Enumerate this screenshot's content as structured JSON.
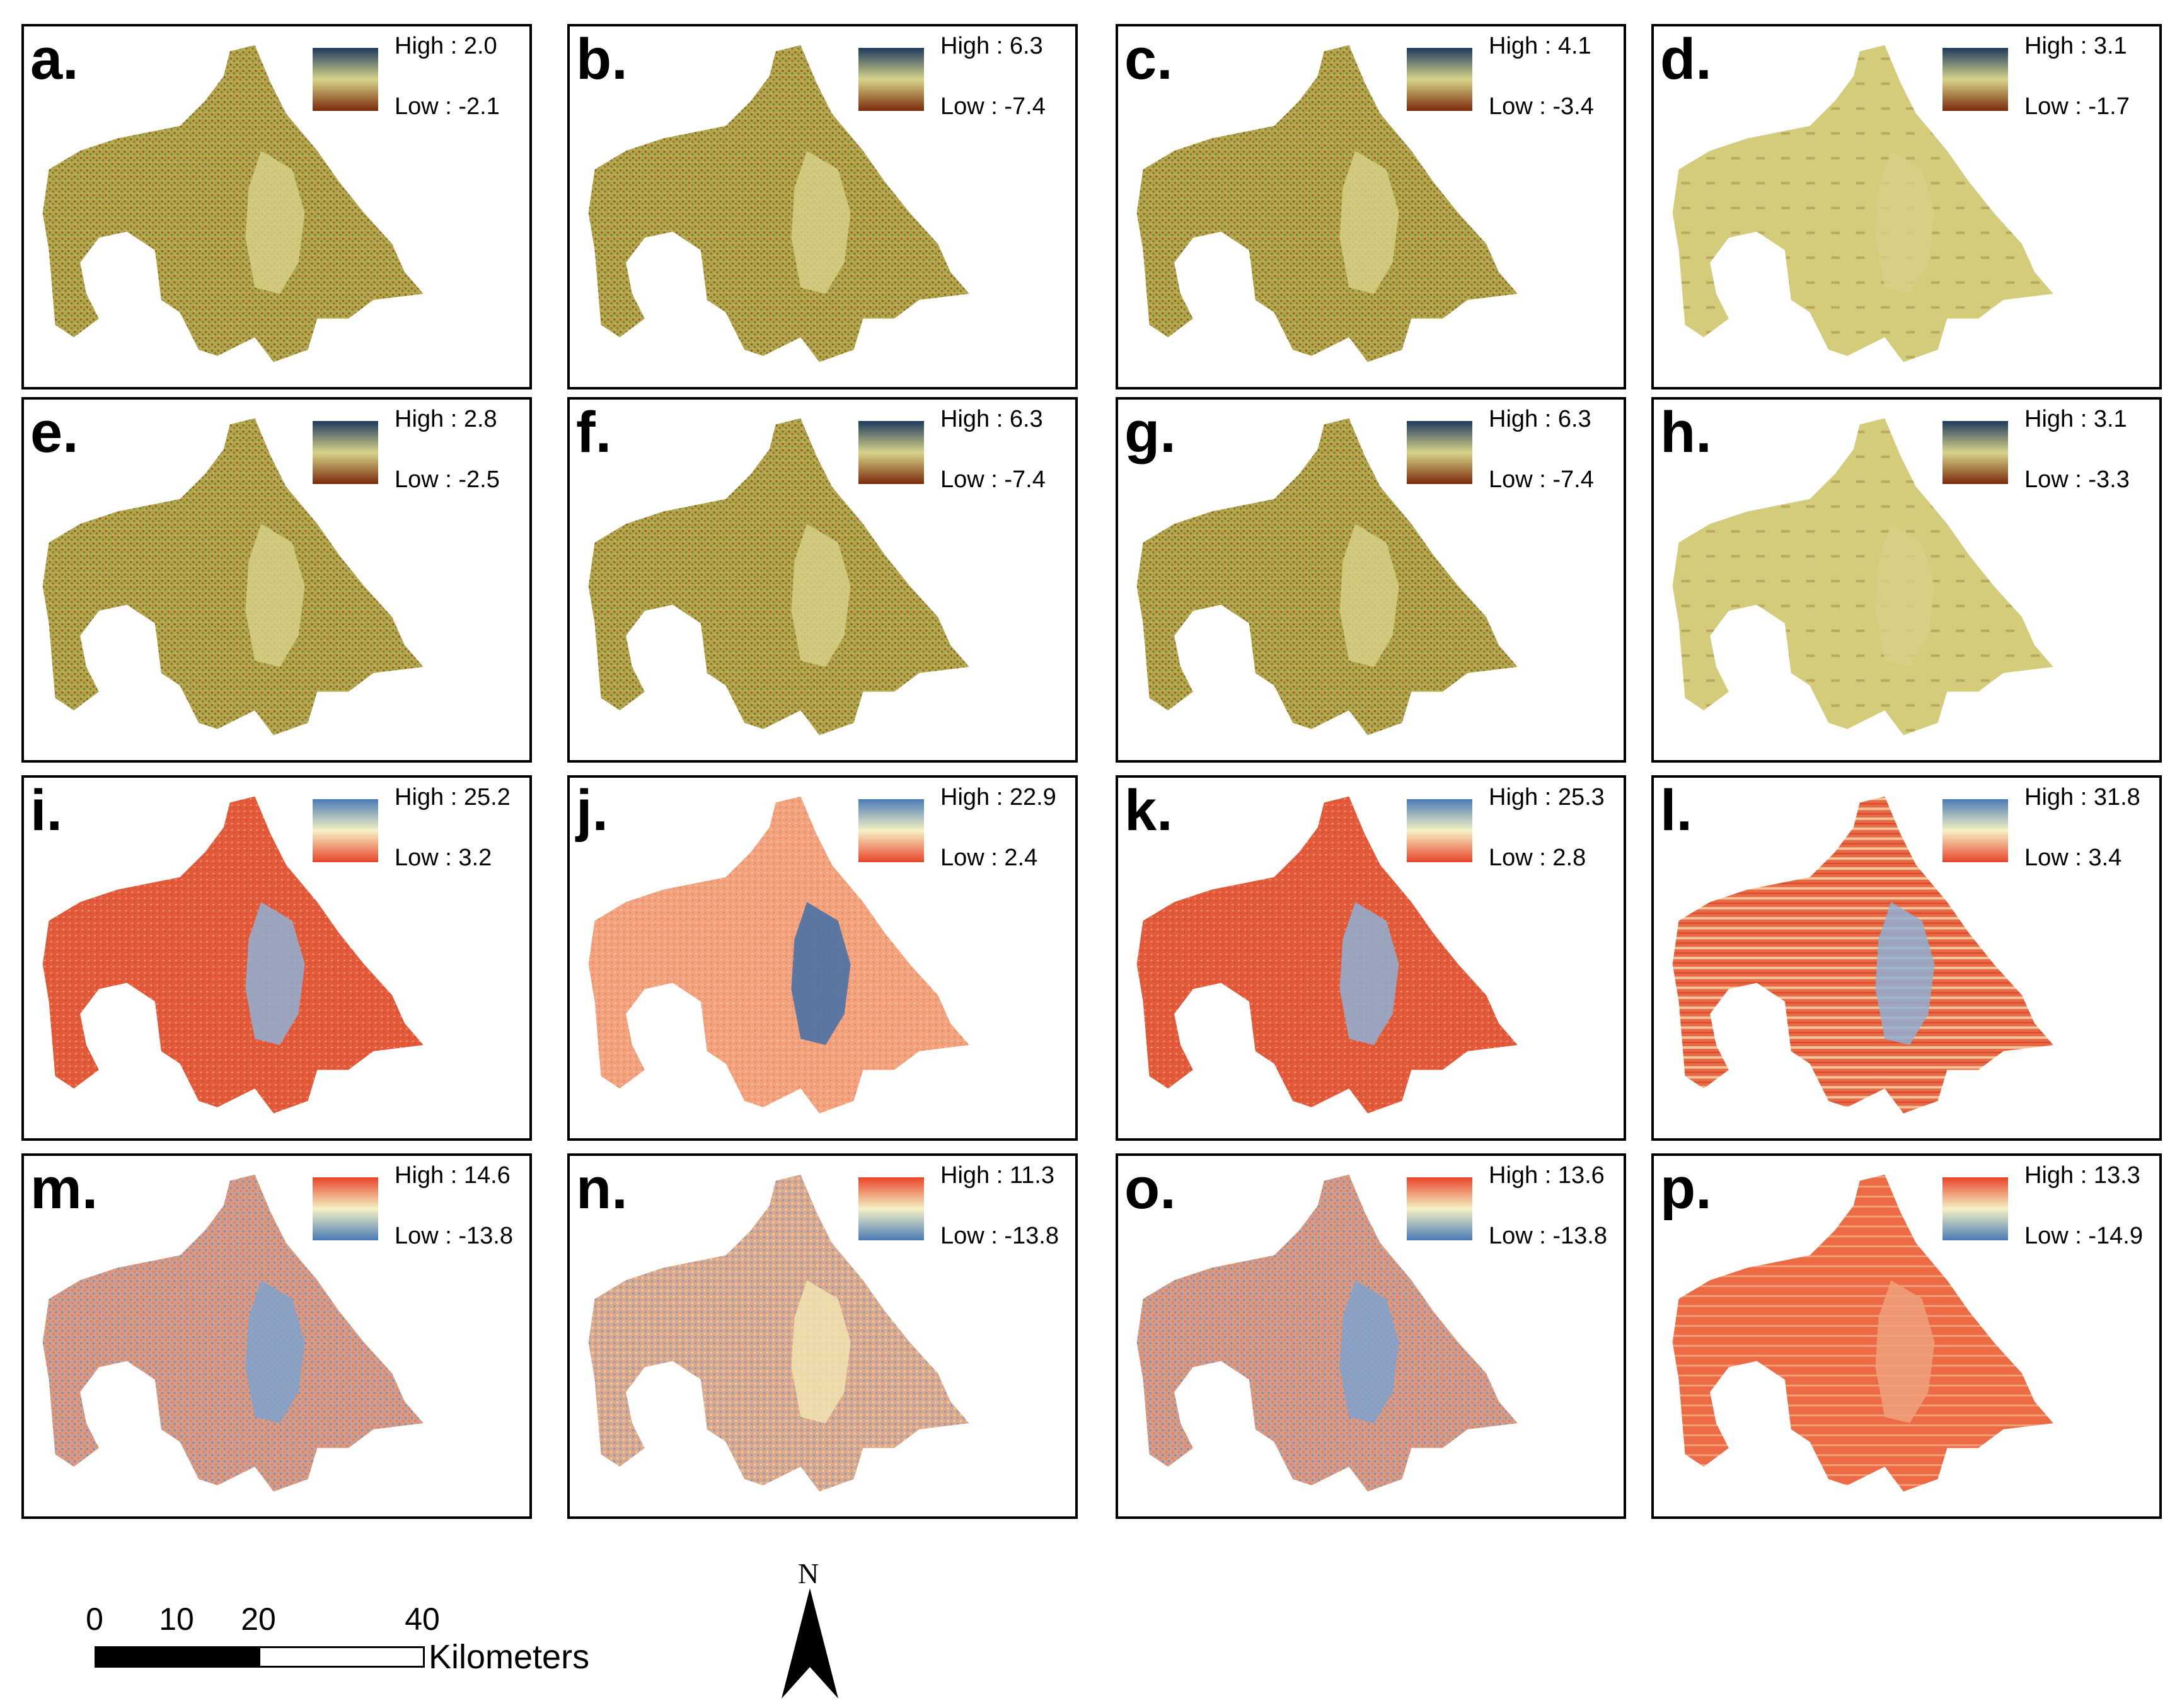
{
  "panels": [
    {
      "label": "a.",
      "high": "High : 2.0",
      "low": "Low : -2.1",
      "scheme": "brown",
      "texture": "fine"
    },
    {
      "label": "b.",
      "high": "High : 6.3",
      "low": "Low : -7.4",
      "scheme": "brown",
      "texture": "fine"
    },
    {
      "label": "c.",
      "high": "High : 4.1",
      "low": "Low : -3.4",
      "scheme": "brown",
      "texture": "fine"
    },
    {
      "label": "d.",
      "high": "High : 3.1",
      "low": "Low : -1.7",
      "scheme": "brown",
      "texture": "smooth"
    },
    {
      "label": "e.",
      "high": "High : 2.8",
      "low": "Low : -2.5",
      "scheme": "brown",
      "texture": "fine"
    },
    {
      "label": "f.",
      "high": "High : 6.3",
      "low": "Low : -7.4",
      "scheme": "brown",
      "texture": "fine"
    },
    {
      "label": "g.",
      "high": "High : 6.3",
      "low": "Low : -7.4",
      "scheme": "brown",
      "texture": "fine"
    },
    {
      "label": "h.",
      "high": "High : 3.1",
      "low": "Low : -3.3",
      "scheme": "brown",
      "texture": "smooth"
    },
    {
      "label": "i.",
      "high": "High : 25.2",
      "low": "Low : 3.2",
      "scheme": "red-blue",
      "texture": "red"
    },
    {
      "label": "j.",
      "high": "High : 22.9",
      "low": "Low : 2.4",
      "scheme": "red-blue",
      "texture": "light"
    },
    {
      "label": "k.",
      "high": "High : 25.3",
      "low": "Low : 2.8",
      "scheme": "red-blue",
      "texture": "red"
    },
    {
      "label": "l.",
      "high": "High : 31.8",
      "low": "Low : 3.4",
      "scheme": "red-blue",
      "texture": "striped"
    },
    {
      "label": "m.",
      "high": "High : 14.6",
      "low": "Low : -13.8",
      "scheme": "blue-red",
      "texture": "mixed"
    },
    {
      "label": "n.",
      "high": "High : 11.3",
      "low": "Low : -13.8",
      "scheme": "blue-red",
      "texture": "mixed-yellow"
    },
    {
      "label": "o.",
      "high": "High : 13.6",
      "low": "Low : -13.8",
      "scheme": "blue-red",
      "texture": "mixed"
    },
    {
      "label": "p.",
      "high": "High : 13.3",
      "low": "Low : -14.9",
      "scheme": "blue-red",
      "texture": "striped-red"
    }
  ],
  "scale_bar": {
    "ticks": [
      "0",
      "10",
      "20",
      "40"
    ],
    "units": "Kilometers"
  },
  "north_arrow": {
    "letter": "N"
  },
  "colors": {
    "brown_ramp": [
      "#1c3a5c",
      "#d8d48a",
      "#7a2a0a"
    ],
    "redblue_ramp": [
      "#4a7bb7",
      "#f5f1c4",
      "#e8442a"
    ],
    "bluered_ramp": [
      "#e8442a",
      "#f5f1c4",
      "#4a7bb7"
    ]
  }
}
